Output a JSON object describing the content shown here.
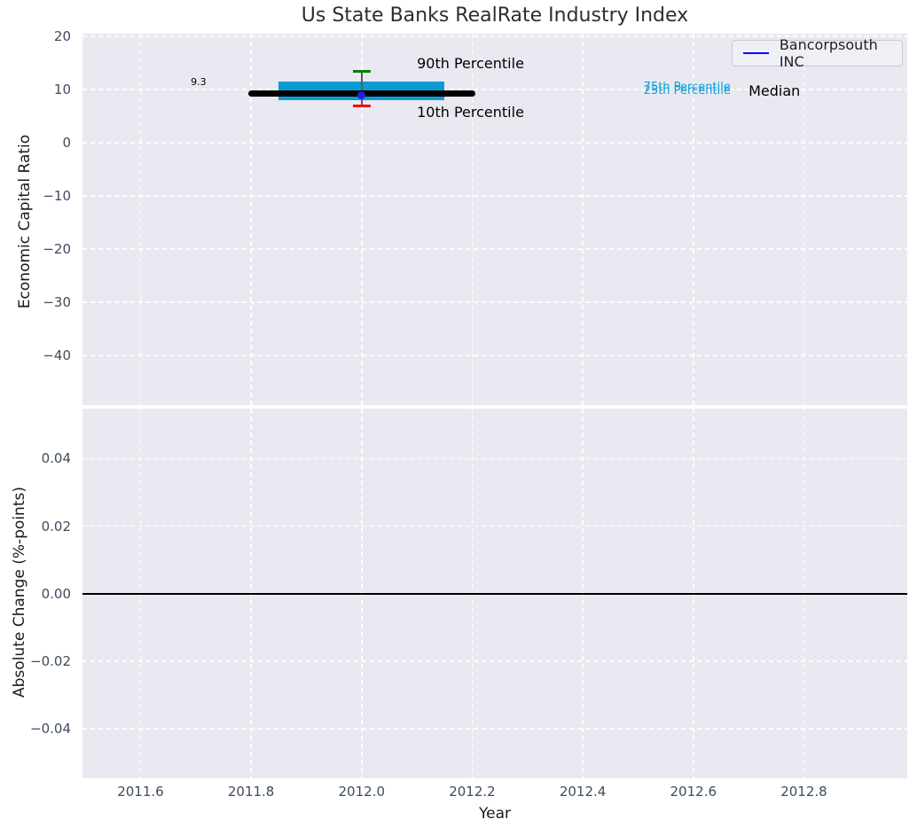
{
  "title": "Us State Banks RealRate Industry Index",
  "legend": {
    "label": "Bancorpsouth INC",
    "line_color": "#0000ff",
    "position": "upper right"
  },
  "colors": {
    "plot_bg": "#e9eaf1",
    "grid": "#ffffff",
    "title_color": "#2e2e2e",
    "tick_label": "#3d4c5e",
    "axis_label": "#1a1a1a",
    "median_line": "#000000",
    "iqr_box": "#0a9bd4",
    "p90_cap": "#007d00",
    "p10_cap": "#fb0000",
    "whisker_line": "#5a5a5a",
    "company_point": "#2121dd",
    "zero_line": "#000000",
    "percentile_text": "#0d9fd9"
  },
  "chart_data": [
    {
      "type": "box-whisker",
      "panel": "industry-distribution",
      "ylabel": "Economic Capital Ratio",
      "xlim": [
        2011.495,
        2012.987
      ],
      "ylim": [
        -49.3,
        20.5
      ],
      "grid": "white-dashed",
      "xticks": [
        {
          "v": 2011.6,
          "label": "2011.6"
        },
        {
          "v": 2011.8,
          "label": "2011.8"
        },
        {
          "v": 2012.0,
          "label": "2012.0"
        },
        {
          "v": 2012.2,
          "label": "2012.2"
        },
        {
          "v": 2012.4,
          "label": "2012.4"
        },
        {
          "v": 2012.6,
          "label": "2012.6"
        },
        {
          "v": 2012.8,
          "label": "2012.8"
        }
      ],
      "yticks": [
        {
          "v": 20,
          "label": "20"
        },
        {
          "v": 10,
          "label": "10"
        },
        {
          "v": 0,
          "label": "0"
        },
        {
          "v": -10,
          "label": "−10"
        },
        {
          "v": -20,
          "label": "−20"
        },
        {
          "v": -30,
          "label": "−30"
        },
        {
          "v": -40,
          "label": "−40"
        }
      ],
      "data": {
        "year": 2012.0,
        "median": 9.3,
        "median_span": [
          2011.8,
          2012.2
        ],
        "q25": 8.0,
        "q75": 11.5,
        "box_span": [
          2011.85,
          2012.15
        ],
        "p10": 6.9,
        "p90": 13.5,
        "cap_halfwidth_years": 0.016,
        "company": {
          "name": "Bancorpsouth INC",
          "year": 2012.0,
          "value": 8.9
        }
      },
      "annotations": [
        {
          "id": "value-label",
          "text": "9.3",
          "x": 2011.705,
          "y": 11.4,
          "color": "#000000",
          "size": 11,
          "align": "center"
        },
        {
          "id": "p90-label",
          "text": "90th Percentile",
          "x": 2012.1,
          "y": 14.8,
          "color": "#000000",
          "size": 16,
          "align": "left"
        },
        {
          "id": "p10-label",
          "text": "10th Percentile",
          "x": 2012.1,
          "y": 5.7,
          "color": "#000000",
          "size": 16,
          "align": "left"
        },
        {
          "id": "p75-label",
          "text": "75th Percentile",
          "x": 2012.51,
          "y": 10.3,
          "color": "#0d9fd9",
          "size": 13,
          "align": "left"
        },
        {
          "id": "p25-label",
          "text": "25th Percentile",
          "x": 2012.51,
          "y": 9.7,
          "color": "#0d9fd9",
          "size": 13,
          "align": "left"
        },
        {
          "id": "median-label",
          "text": "Median",
          "x": 2012.7,
          "y": 9.6,
          "color": "#000000",
          "size": 16,
          "align": "left"
        }
      ]
    },
    {
      "type": "line",
      "panel": "absolute-change",
      "ylabel": "Absolute Change (%-points)",
      "xlabel": "Year",
      "ylim": [
        -0.0547,
        0.0548
      ],
      "grid": "white-dashed",
      "yticks": [
        {
          "v": 0.04,
          "label": "0.04"
        },
        {
          "v": 0.02,
          "label": "0.02"
        },
        {
          "v": 0.0,
          "label": "0.00"
        },
        {
          "v": -0.02,
          "label": "−0.02"
        },
        {
          "v": -0.04,
          "label": "−0.04"
        }
      ],
      "zero_line": 0.0,
      "series": []
    }
  ]
}
